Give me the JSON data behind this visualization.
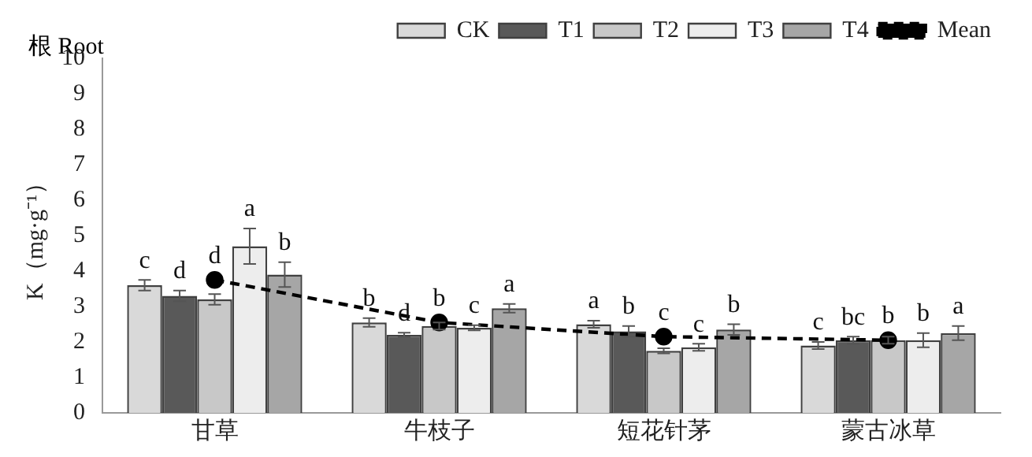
{
  "chart_data": {
    "type": "bar",
    "title": "根 Root",
    "ylabel": "K（mg·g⁻¹）",
    "categories": [
      "甘草",
      "牛枝子",
      "短花针茅",
      "蒙古冰草"
    ],
    "series": [
      {
        "name": "CK",
        "color": "#d9d9d9",
        "values": [
          3.6,
          2.55,
          2.5,
          1.9
        ],
        "errors": [
          0.15,
          0.12,
          0.1,
          0.1
        ],
        "value_labels": [
          "c",
          "b",
          "a",
          "c"
        ]
      },
      {
        "name": "T1",
        "color": "#595959",
        "values": [
          3.3,
          2.2,
          2.3,
          2.05
        ],
        "errors": [
          0.15,
          0.06,
          0.15,
          0.1
        ],
        "value_labels": [
          "d",
          "d",
          "b",
          "bc"
        ]
      },
      {
        "name": "T2",
        "color": "#c8c8c8",
        "values": [
          3.2,
          2.45,
          1.75,
          2.05
        ],
        "errors": [
          0.15,
          0.1,
          0.07,
          0.1
        ],
        "value_labels": [
          "d",
          "b",
          "c",
          "b"
        ]
      },
      {
        "name": "T3",
        "color": "#ededed",
        "values": [
          4.7,
          2.4,
          1.85,
          2.05
        ],
        "errors": [
          0.5,
          0.07,
          0.1,
          0.2
        ],
        "value_labels": [
          "a",
          "c",
          "c",
          "b"
        ]
      },
      {
        "name": "T4",
        "color": "#a6a6a6",
        "values": [
          3.9,
          2.95,
          2.35,
          2.25
        ],
        "errors": [
          0.35,
          0.12,
          0.15,
          0.2
        ],
        "value_labels": [
          "b",
          "a",
          "b",
          "a"
        ]
      },
      {
        "name": "Mean",
        "type": "line",
        "color": "#000000",
        "values": [
          3.75,
          2.55,
          2.15,
          2.05
        ],
        "marker": "circle",
        "line_style": "dashed"
      }
    ],
    "ylim": [
      0,
      10
    ],
    "yticks": [
      0,
      1,
      2,
      3,
      4,
      5,
      6,
      7,
      8,
      9,
      10
    ],
    "grid": false,
    "legend": "top right"
  }
}
